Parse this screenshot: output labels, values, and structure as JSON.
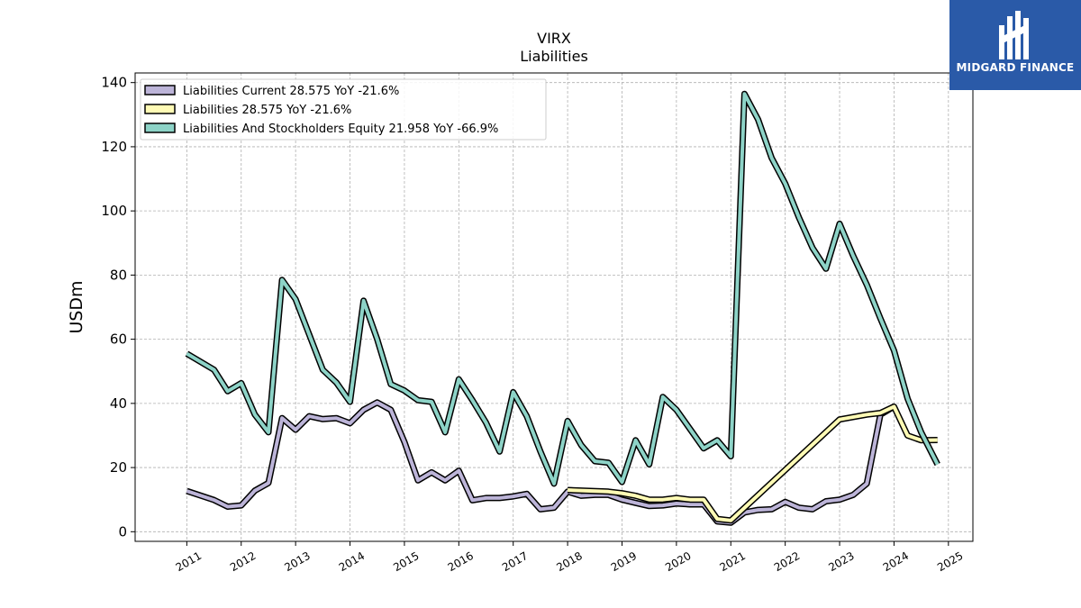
{
  "chart_data": {
    "type": "line",
    "title": "VIRX",
    "subtitle": "Liabilities",
    "ylabel": "USDm",
    "xlabel": "",
    "ylim": [
      -3,
      143
    ],
    "xlim": [
      2010.05,
      2025.45
    ],
    "yticks": [
      0,
      20,
      40,
      60,
      80,
      100,
      120,
      140
    ],
    "xticks": [
      "2011",
      "2012",
      "2013",
      "2014",
      "2015",
      "2016",
      "2017",
      "2018",
      "2019",
      "2020",
      "2021",
      "2022",
      "2023",
      "2024",
      "2025"
    ],
    "grid": true,
    "legend_position": "top-left",
    "series": [
      {
        "name": "Liabilities Current  28.575 YoY -21.6%",
        "color": "#bcb4d8",
        "x": [
          2011.0,
          2011.5,
          2011.75,
          2012.0,
          2012.25,
          2012.5,
          2012.75,
          2013.0,
          2013.25,
          2013.5,
          2013.75,
          2014.0,
          2014.25,
          2014.5,
          2014.75,
          2015.0,
          2015.25,
          2015.5,
          2015.75,
          2016.0,
          2016.25,
          2016.5,
          2016.75,
          2017.0,
          2017.25,
          2017.5,
          2017.75,
          2018.0,
          2018.25,
          2018.5,
          2018.75,
          2019.0,
          2019.25,
          2019.5,
          2019.75,
          2020.0,
          2020.25,
          2020.5,
          2020.75,
          2021.0,
          2021.25,
          2021.5,
          2021.75,
          2022.0,
          2022.25,
          2022.5,
          2022.75,
          2023.0,
          2023.25,
          2023.5,
          2023.75,
          2024.0
        ],
        "values": [
          12.7,
          9.9,
          7.8,
          8.2,
          12.8,
          15.2,
          35.4,
          31.8,
          36.0,
          35.1,
          35.4,
          33.8,
          38.0,
          40.3,
          38.0,
          28.0,
          16.0,
          18.5,
          16.0,
          19.0,
          9.8,
          10.5,
          10.5,
          11.0,
          11.8,
          7.0,
          7.5,
          12.5,
          11.2,
          11.5,
          11.5,
          10.0,
          9.0,
          8.0,
          8.2,
          8.8,
          8.5,
          8.5,
          3.2,
          2.8,
          6.0,
          6.8,
          7.0,
          9.3,
          7.5,
          7.0,
          9.5,
          10.0,
          11.5,
          15.0,
          36.5,
          39.0
        ]
      },
      {
        "name": "Liabilities  28.575 YoY -21.6%",
        "color": "#fffbb5",
        "x": [
          2018.0,
          2018.75,
          2019.0,
          2019.25,
          2019.5,
          2019.75,
          2020.0,
          2020.25,
          2020.5,
          2020.75,
          2021.0,
          2023.0,
          2023.5,
          2023.75,
          2024.0,
          2024.25,
          2024.5,
          2024.8
        ],
        "values": [
          13.0,
          12.5,
          12.0,
          11.2,
          10.0,
          10.0,
          10.5,
          10.0,
          10.0,
          4.0,
          3.5,
          35.0,
          36.5,
          37.0,
          39.0,
          30.0,
          28.5,
          28.6
        ]
      },
      {
        "name": "Liabilities And Stockholders Equity  21.958 YoY -66.9%",
        "color": "#8dd3c7",
        "x": [
          2011.0,
          2011.5,
          2011.75,
          2012.0,
          2012.25,
          2012.5,
          2012.75,
          2013.0,
          2013.25,
          2013.5,
          2013.75,
          2014.0,
          2014.25,
          2014.5,
          2014.75,
          2015.0,
          2015.25,
          2015.5,
          2015.75,
          2016.0,
          2016.25,
          2016.5,
          2016.75,
          2017.0,
          2017.25,
          2017.5,
          2017.75,
          2018.0,
          2018.25,
          2018.5,
          2018.75,
          2019.0,
          2019.25,
          2019.5,
          2019.75,
          2020.0,
          2020.25,
          2020.5,
          2020.75,
          2021.0,
          2021.25,
          2021.5,
          2021.75,
          2022.0,
          2022.25,
          2022.5,
          2022.75,
          2023.0,
          2023.25,
          2023.5,
          2023.75,
          2024.0,
          2024.25,
          2024.5,
          2024.8
        ],
        "values": [
          55.5,
          50.5,
          43.8,
          46.3,
          36.5,
          31.0,
          78.5,
          72.5,
          61.5,
          50.5,
          46.5,
          40.5,
          72.0,
          60.0,
          46.0,
          44.0,
          41.0,
          40.5,
          31.0,
          47.5,
          41.0,
          34.0,
          25.0,
          43.5,
          36.0,
          25.0,
          15.0,
          34.5,
          27.0,
          22.0,
          21.5,
          15.5,
          28.5,
          21.0,
          42.0,
          38.0,
          32.0,
          26.0,
          28.5,
          23.5,
          136.5,
          128.5,
          116.5,
          108.5,
          98.0,
          88.5,
          82.0,
          96.0,
          86.0,
          77.0,
          66.5,
          56.5,
          41.5,
          31.0,
          21.0
        ]
      }
    ]
  },
  "logo": {
    "text": "MIDGARD FINANCE",
    "bg_color": "#2a5aa8"
  }
}
